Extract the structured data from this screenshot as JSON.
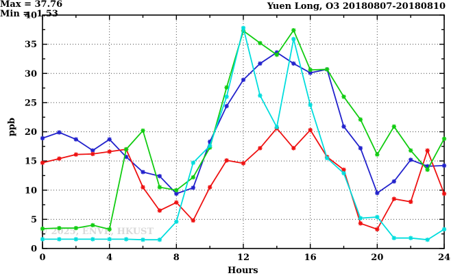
{
  "title": "Yuen Long, O3 20180807-20180810",
  "legend": {
    "max_label": "Max = 37.76",
    "min_label": "Min =  1.53"
  },
  "watermark": "© 2025, ENVE, HKUST",
  "chart_data": {
    "type": "line",
    "title": "Yuen Long, O3 20180807-20180810",
    "xlabel": "Hours",
    "ylabel": "ppb",
    "xlim": [
      0,
      24
    ],
    "ylim": [
      0,
      40
    ],
    "xticks": [
      0,
      4,
      8,
      12,
      16,
      20,
      24
    ],
    "yticks": [
      0,
      5,
      10,
      15,
      20,
      25,
      30,
      35,
      40
    ],
    "x_minor_step": 2,
    "y_minor_step": 2.5,
    "grid": true,
    "legend_position": "none",
    "annotations": {
      "max": 37.76,
      "min": 1.53
    },
    "x": [
      0,
      1,
      2,
      3,
      4,
      5,
      6,
      7,
      8,
      9,
      10,
      11,
      12,
      13,
      14,
      15,
      16,
      17,
      18,
      19,
      20,
      21,
      22,
      23,
      24
    ],
    "series": [
      {
        "name": "blue",
        "color": "#2222cc",
        "values": [
          18.9,
          19.9,
          18.7,
          16.8,
          18.7,
          15.7,
          13.1,
          12.4,
          9.4,
          10.4,
          18.3,
          24.4,
          28.9,
          31.7,
          33.6,
          31.7,
          30.1,
          30.7,
          20.9,
          17.2,
          9.5,
          11.5,
          15.2,
          14.1,
          14.2
        ]
      },
      {
        "name": "red",
        "color": "#ee1111",
        "values": [
          14.7,
          15.4,
          16.1,
          16.2,
          16.6,
          17.0,
          10.5,
          6.5,
          7.9,
          4.8,
          10.5,
          15.1,
          14.6,
          17.2,
          20.6,
          17.2,
          20.3,
          15.7,
          13.5,
          4.3,
          3.3,
          8.5,
          8.0,
          16.8,
          9.4
        ]
      },
      {
        "name": "green",
        "color": "#11cc11",
        "values": [
          3.4,
          3.5,
          3.5,
          4.0,
          3.3,
          17.0,
          20.2,
          10.5,
          10.0,
          12.2,
          17.3,
          27.6,
          37.3,
          35.2,
          33.2,
          37.4,
          30.6,
          30.7,
          26.0,
          22.1,
          16.1,
          20.9,
          16.8,
          13.5,
          18.8
        ]
      },
      {
        "name": "cyan",
        "color": "#00dddd",
        "values": [
          1.6,
          1.6,
          1.6,
          1.6,
          1.6,
          1.6,
          1.5,
          1.5,
          4.6,
          14.7,
          17.6,
          26.0,
          37.8,
          26.2,
          20.8,
          35.9,
          24.6,
          15.5,
          12.9,
          5.2,
          5.4,
          1.8,
          1.8,
          1.5,
          3.3
        ]
      }
    ]
  }
}
